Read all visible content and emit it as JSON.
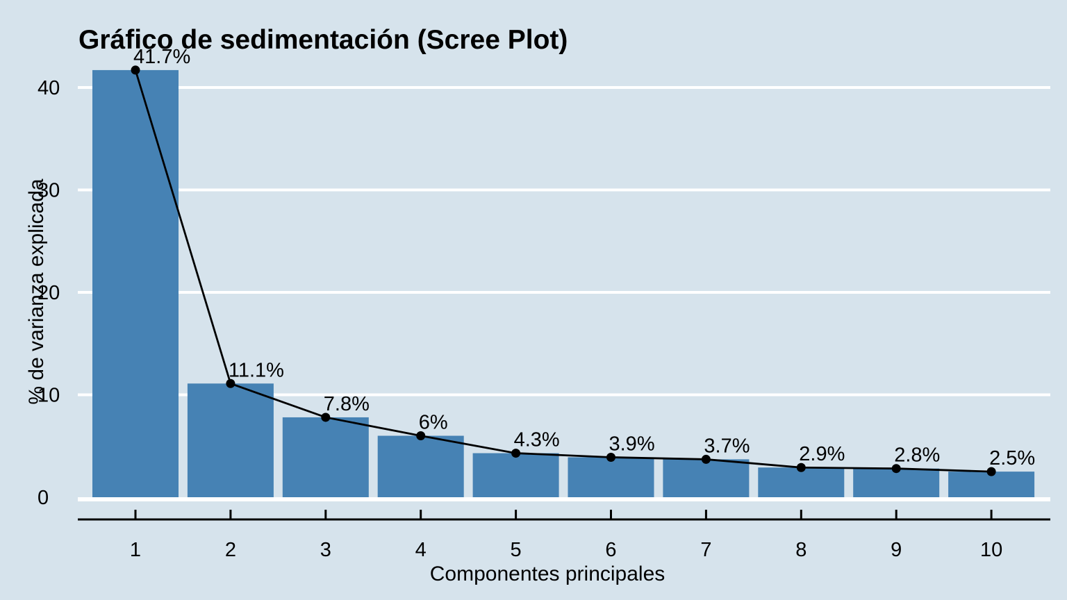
{
  "chart_data": {
    "type": "bar",
    "overlay": "line-with-points",
    "title": "Gráfico de sedimentación (Scree Plot)",
    "xlabel": "Componentes principales",
    "ylabel": "% de varianza explicada",
    "categories": [
      "1",
      "2",
      "3",
      "4",
      "5",
      "6",
      "7",
      "8",
      "9",
      "10"
    ],
    "values": [
      41.7,
      11.1,
      7.8,
      6,
      4.3,
      3.9,
      3.7,
      2.9,
      2.8,
      2.5
    ],
    "point_labels": [
      "41.7%",
      "11.1%",
      "7.8%",
      "6%",
      "4.3%",
      "3.9%",
      "3.7%",
      "2.9%",
      "2.8%",
      "2.5%"
    ],
    "yticks": [
      0,
      10,
      20,
      30,
      40
    ],
    "ylim": [
      0,
      43.6
    ],
    "grid": "horizontal-white",
    "legend": "none",
    "colors": {
      "background": "#d6e3ec",
      "bar": "#4682b4",
      "line": "#000000",
      "point": "#000000",
      "grid": "#ffffff",
      "axis": "#000000",
      "text": "#000000"
    }
  }
}
